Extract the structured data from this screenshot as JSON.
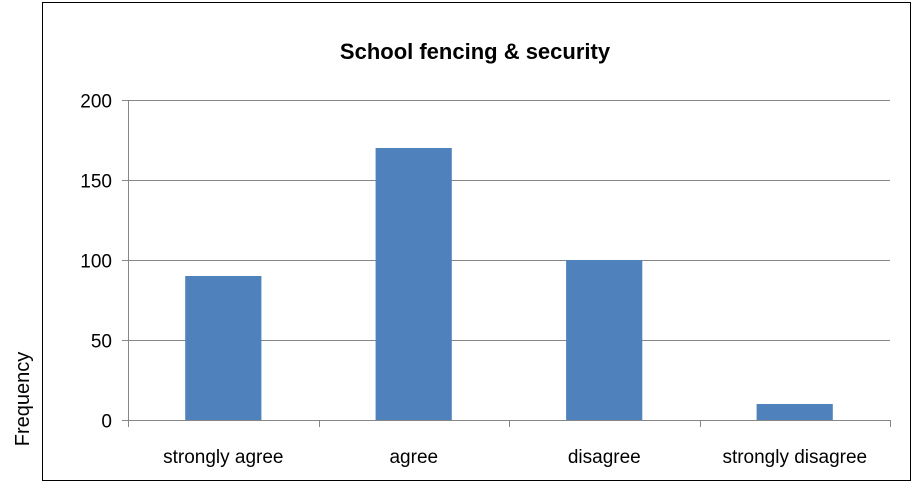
{
  "chart_data": {
    "type": "bar",
    "title": "School fencing & security",
    "xlabel": "",
    "ylabel": "Frequency",
    "categories": [
      "strongly agree",
      "agree",
      "disagree",
      "strongly disagree"
    ],
    "values": [
      90,
      170,
      100,
      10
    ],
    "ylim": [
      0,
      200
    ],
    "yticks": [
      0,
      50,
      100,
      150,
      200
    ],
    "grid": true,
    "legend": "none",
    "bar_color": "#4F81BD"
  }
}
